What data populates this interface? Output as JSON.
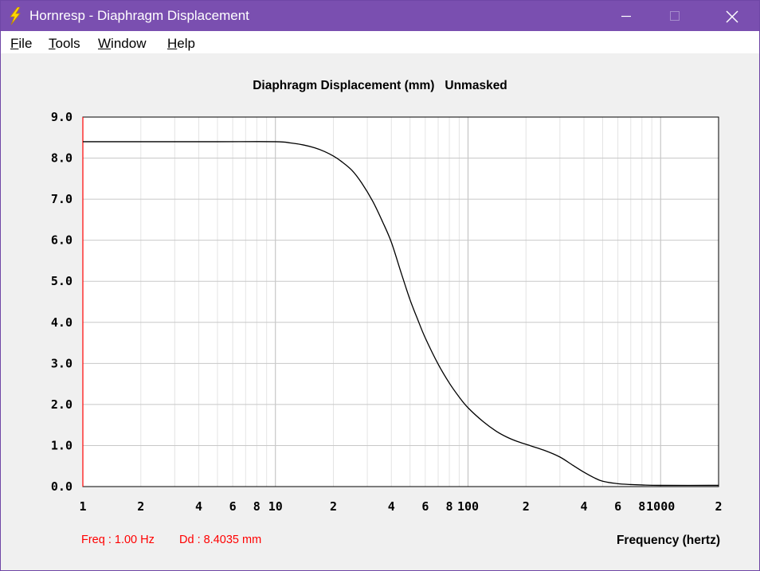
{
  "window": {
    "title": "Hornresp - Diaphragm Displacement",
    "app_icon": "lightning-bolt-icon",
    "controls": {
      "minimize_icon": "minimize-icon",
      "maximize_icon": "maximize-icon",
      "close_icon": "close-icon"
    },
    "title_color": "#7a4fb0"
  },
  "menu": {
    "items": [
      {
        "label": "File",
        "mnemonic": "F",
        "rest": "ile"
      },
      {
        "label": "Tools",
        "mnemonic": "T",
        "rest": "ools"
      },
      {
        "label": "Window",
        "mnemonic": "W",
        "rest": "indow"
      },
      {
        "label": "Help",
        "mnemonic": "H",
        "rest": "elp"
      }
    ]
  },
  "chart_data": {
    "type": "line",
    "title": "Diaphragm Displacement (mm)   Unmasked",
    "xlabel": "Frequency (hertz)",
    "ylabel": "",
    "xscale": "log",
    "xlim": [
      1,
      2000
    ],
    "ylim": [
      0,
      9
    ],
    "grid": true,
    "yticks": [
      "0.0",
      "1.0",
      "2.0",
      "3.0",
      "4.0",
      "5.0",
      "6.0",
      "7.0",
      "8.0",
      "9.0"
    ],
    "xticks": [
      {
        "value": 1,
        "label": "1"
      },
      {
        "value": 2,
        "label": "2"
      },
      {
        "value": 4,
        "label": "4"
      },
      {
        "value": 6,
        "label": "6"
      },
      {
        "value": 8,
        "label": "8"
      },
      {
        "value": 10,
        "label": "10"
      },
      {
        "value": 20,
        "label": "2"
      },
      {
        "value": 40,
        "label": "4"
      },
      {
        "value": 60,
        "label": "6"
      },
      {
        "value": 80,
        "label": "8"
      },
      {
        "value": 100,
        "label": "100"
      },
      {
        "value": 200,
        "label": "2"
      },
      {
        "value": 400,
        "label": "4"
      },
      {
        "value": 600,
        "label": "6"
      },
      {
        "value": 800,
        "label": "8"
      },
      {
        "value": 1000,
        "label": "1000"
      },
      {
        "value": 2000,
        "label": "2"
      }
    ],
    "cursor": {
      "x": 1,
      "color": "#ff0000"
    },
    "series": [
      {
        "color": "#000000",
        "x": [
          1,
          2,
          5,
          10,
          12,
          14,
          16,
          18,
          20,
          22,
          25,
          28,
          32,
          36,
          40,
          45,
          50,
          55,
          60,
          70,
          80,
          90,
          100,
          120,
          140,
          160,
          180,
          200,
          250,
          300,
          350,
          400,
          450,
          500,
          600,
          700,
          800,
          1000,
          2000
        ],
        "y": [
          8.4,
          8.4,
          8.4,
          8.4,
          8.37,
          8.32,
          8.25,
          8.16,
          8.05,
          7.92,
          7.7,
          7.4,
          6.95,
          6.45,
          5.95,
          5.2,
          4.55,
          4.05,
          3.62,
          2.98,
          2.52,
          2.18,
          1.92,
          1.58,
          1.35,
          1.2,
          1.1,
          1.03,
          0.88,
          0.72,
          0.52,
          0.35,
          0.22,
          0.13,
          0.07,
          0.05,
          0.04,
          0.03,
          0.03
        ]
      }
    ]
  },
  "readout": {
    "freq": "Freq : 1.00 Hz",
    "dd": "Dd : 8.4035 mm"
  }
}
